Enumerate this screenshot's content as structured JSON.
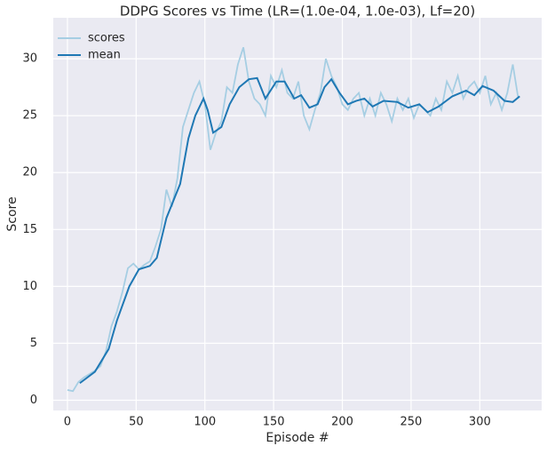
{
  "chart_data": {
    "type": "line",
    "title": "DDPG Scores vs Time (LR=(1.0e-04, 1.0e-03), Lf=20)",
    "x_label": "Episode #",
    "y_label": "Score",
    "xlim": [
      -10.3,
      345
    ],
    "ylim": [
      -0.9,
      33.6
    ],
    "xticks": [
      0,
      50,
      100,
      150,
      200,
      250,
      300
    ],
    "yticks": [
      0,
      5,
      10,
      15,
      20,
      25,
      30
    ],
    "grid": true,
    "legend": "upper left",
    "series": [
      {
        "name": "scores",
        "color": "#a6cee3",
        "x": [
          0,
          4,
          8,
          12,
          16,
          20,
          24,
          28,
          32,
          36,
          40,
          44,
          48,
          52,
          56,
          60,
          64,
          68,
          72,
          76,
          80,
          84,
          88,
          92,
          96,
          100,
          104,
          108,
          112,
          116,
          120,
          124,
          128,
          132,
          136,
          140,
          144,
          148,
          152,
          156,
          160,
          164,
          168,
          172,
          176,
          180,
          184,
          188,
          192,
          196,
          200,
          204,
          208,
          212,
          216,
          220,
          224,
          228,
          232,
          236,
          240,
          244,
          248,
          252,
          256,
          260,
          264,
          268,
          272,
          276,
          280,
          284,
          288,
          292,
          296,
          300,
          304,
          308,
          312,
          316,
          320,
          324,
          328
        ],
        "values": [
          0.9,
          0.8,
          1.6,
          2.0,
          2.3,
          2.6,
          3.0,
          4.3,
          6.5,
          7.8,
          9.5,
          11.6,
          12.0,
          11.5,
          11.9,
          12.2,
          13.5,
          15.0,
          18.5,
          17.0,
          19.5,
          24.0,
          25.5,
          27.0,
          28.0,
          26.0,
          22.0,
          23.5,
          24.5,
          27.5,
          27.0,
          29.5,
          31.0,
          28.0,
          26.5,
          26.0,
          25.0,
          28.5,
          27.5,
          29.0,
          27.0,
          26.5,
          28.0,
          25.0,
          23.8,
          25.5,
          27.0,
          30.0,
          28.5,
          27.5,
          26.0,
          25.5,
          26.5,
          27.0,
          25.0,
          26.5,
          25.0,
          27.0,
          26.0,
          24.5,
          26.5,
          25.5,
          26.5,
          24.8,
          26.0,
          25.5,
          25.0,
          26.5,
          25.5,
          28.0,
          27.0,
          28.5,
          26.5,
          27.5,
          28.0,
          27.0,
          28.5,
          26.0,
          27.0,
          25.5,
          27.0,
          29.5,
          26.5
        ]
      },
      {
        "name": "mean",
        "color": "#1f78b4",
        "x": [
          9,
          20,
          30,
          36,
          45,
          52,
          60,
          65,
          72,
          78,
          82,
          88,
          93,
          99,
          102,
          106,
          112,
          118,
          125,
          132,
          138,
          144,
          152,
          158,
          165,
          170,
          176,
          182,
          187,
          192,
          198,
          204,
          210,
          216,
          222,
          230,
          240,
          248,
          256,
          262,
          270,
          280,
          290,
          296,
          302,
          310,
          318,
          324,
          329
        ],
        "values": [
          1.5,
          2.5,
          4.5,
          7.0,
          10.0,
          11.5,
          11.8,
          12.5,
          16.0,
          17.8,
          19.0,
          23.0,
          25.0,
          26.5,
          25.5,
          23.5,
          24.0,
          26.0,
          27.5,
          28.2,
          28.3,
          26.5,
          28.0,
          28.0,
          26.5,
          26.8,
          25.7,
          26.0,
          27.5,
          28.2,
          27.0,
          26.0,
          26.3,
          26.5,
          25.8,
          26.3,
          26.2,
          25.7,
          26.0,
          25.3,
          25.8,
          26.7,
          27.2,
          26.8,
          27.6,
          27.2,
          26.3,
          26.2,
          26.7
        ]
      }
    ]
  }
}
